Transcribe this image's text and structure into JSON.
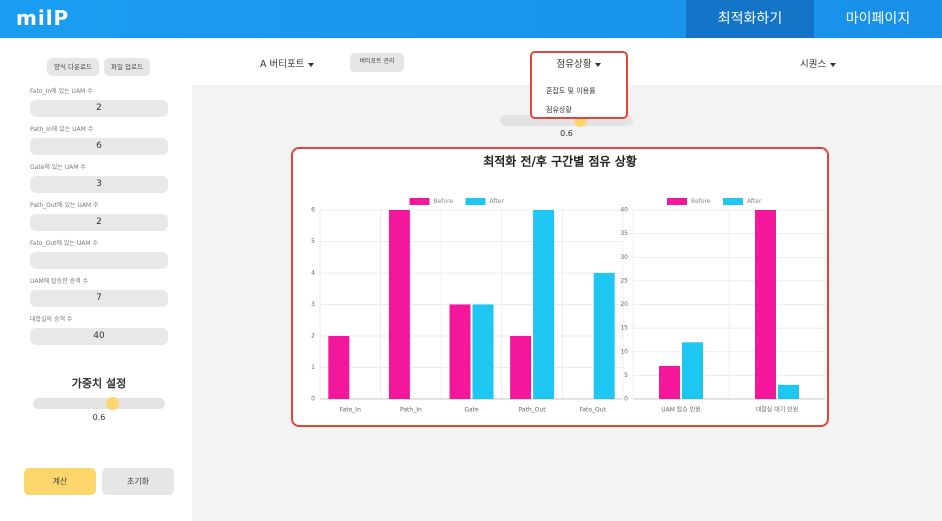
{
  "header": {
    "logo": "milP",
    "nav": [
      "최적화하기",
      "마이페이지"
    ]
  },
  "sidebar": {
    "buttons": [
      "양식 다운로드",
      "파일 업로드"
    ],
    "fields": [
      {
        "label": "Fato_In에 있는 UAM 수",
        "value": 2
      },
      {
        "label": "Path_In에 있는 UAM 수",
        "value": 6
      },
      {
        "label": "Gate에 있는 UAM 수",
        "value": 3
      },
      {
        "label": "Path_Out에 있는 UAM 수",
        "value": 2
      },
      {
        "label": "Fato_Out에 있는 UAM 수"
      },
      {
        "label": "UAM에 탑승한 승객 수",
        "value": 7
      },
      {
        "label": "대합실의 승객 수",
        "value": 40
      }
    ],
    "weight": {
      "title": "가중치 설정",
      "value": 0.6
    },
    "actions": [
      "계산",
      "초기화"
    ]
  },
  "toolbar": {
    "vertiport": "A 버티포트",
    "manage": "버티포트 관리",
    "view": "점유상황",
    "view_options": [
      "혼잡도 및 이용률",
      "점유상황"
    ],
    "sequence": "시퀀스",
    "slider_value": 0.6
  },
  "panel": {
    "title": "최적화 전/후 구간별 점유 상황"
  },
  "chart_data": [
    {
      "type": "bar",
      "categories": [
        "Fato_In",
        "Path_In",
        "Gate",
        "Path_Out",
        "Fato_Out"
      ],
      "series": [
        {
          "name": "Before",
          "color": "#f5179b",
          "values": [
            2,
            6,
            3,
            2,
            0
          ]
        },
        {
          "name": "After",
          "color": "#1ec6f2",
          "values": [
            0,
            0,
            3,
            6,
            4
          ]
        }
      ],
      "ylim": [
        0,
        6
      ],
      "yticks": [
        0,
        1,
        2,
        3,
        4,
        5,
        6
      ],
      "grid": true
    },
    {
      "type": "bar",
      "categories": [
        "UAM 탑승 인원",
        "대합실 대기 인원"
      ],
      "series": [
        {
          "name": "Before",
          "color": "#f5179b",
          "values": [
            7,
            40
          ]
        },
        {
          "name": "After",
          "color": "#1ec6f2",
          "values": [
            12,
            3
          ]
        }
      ],
      "ylim": [
        0,
        40
      ],
      "yticks": [
        0,
        5,
        10,
        15,
        20,
        25,
        30,
        35,
        40
      ],
      "grid": true
    }
  ]
}
